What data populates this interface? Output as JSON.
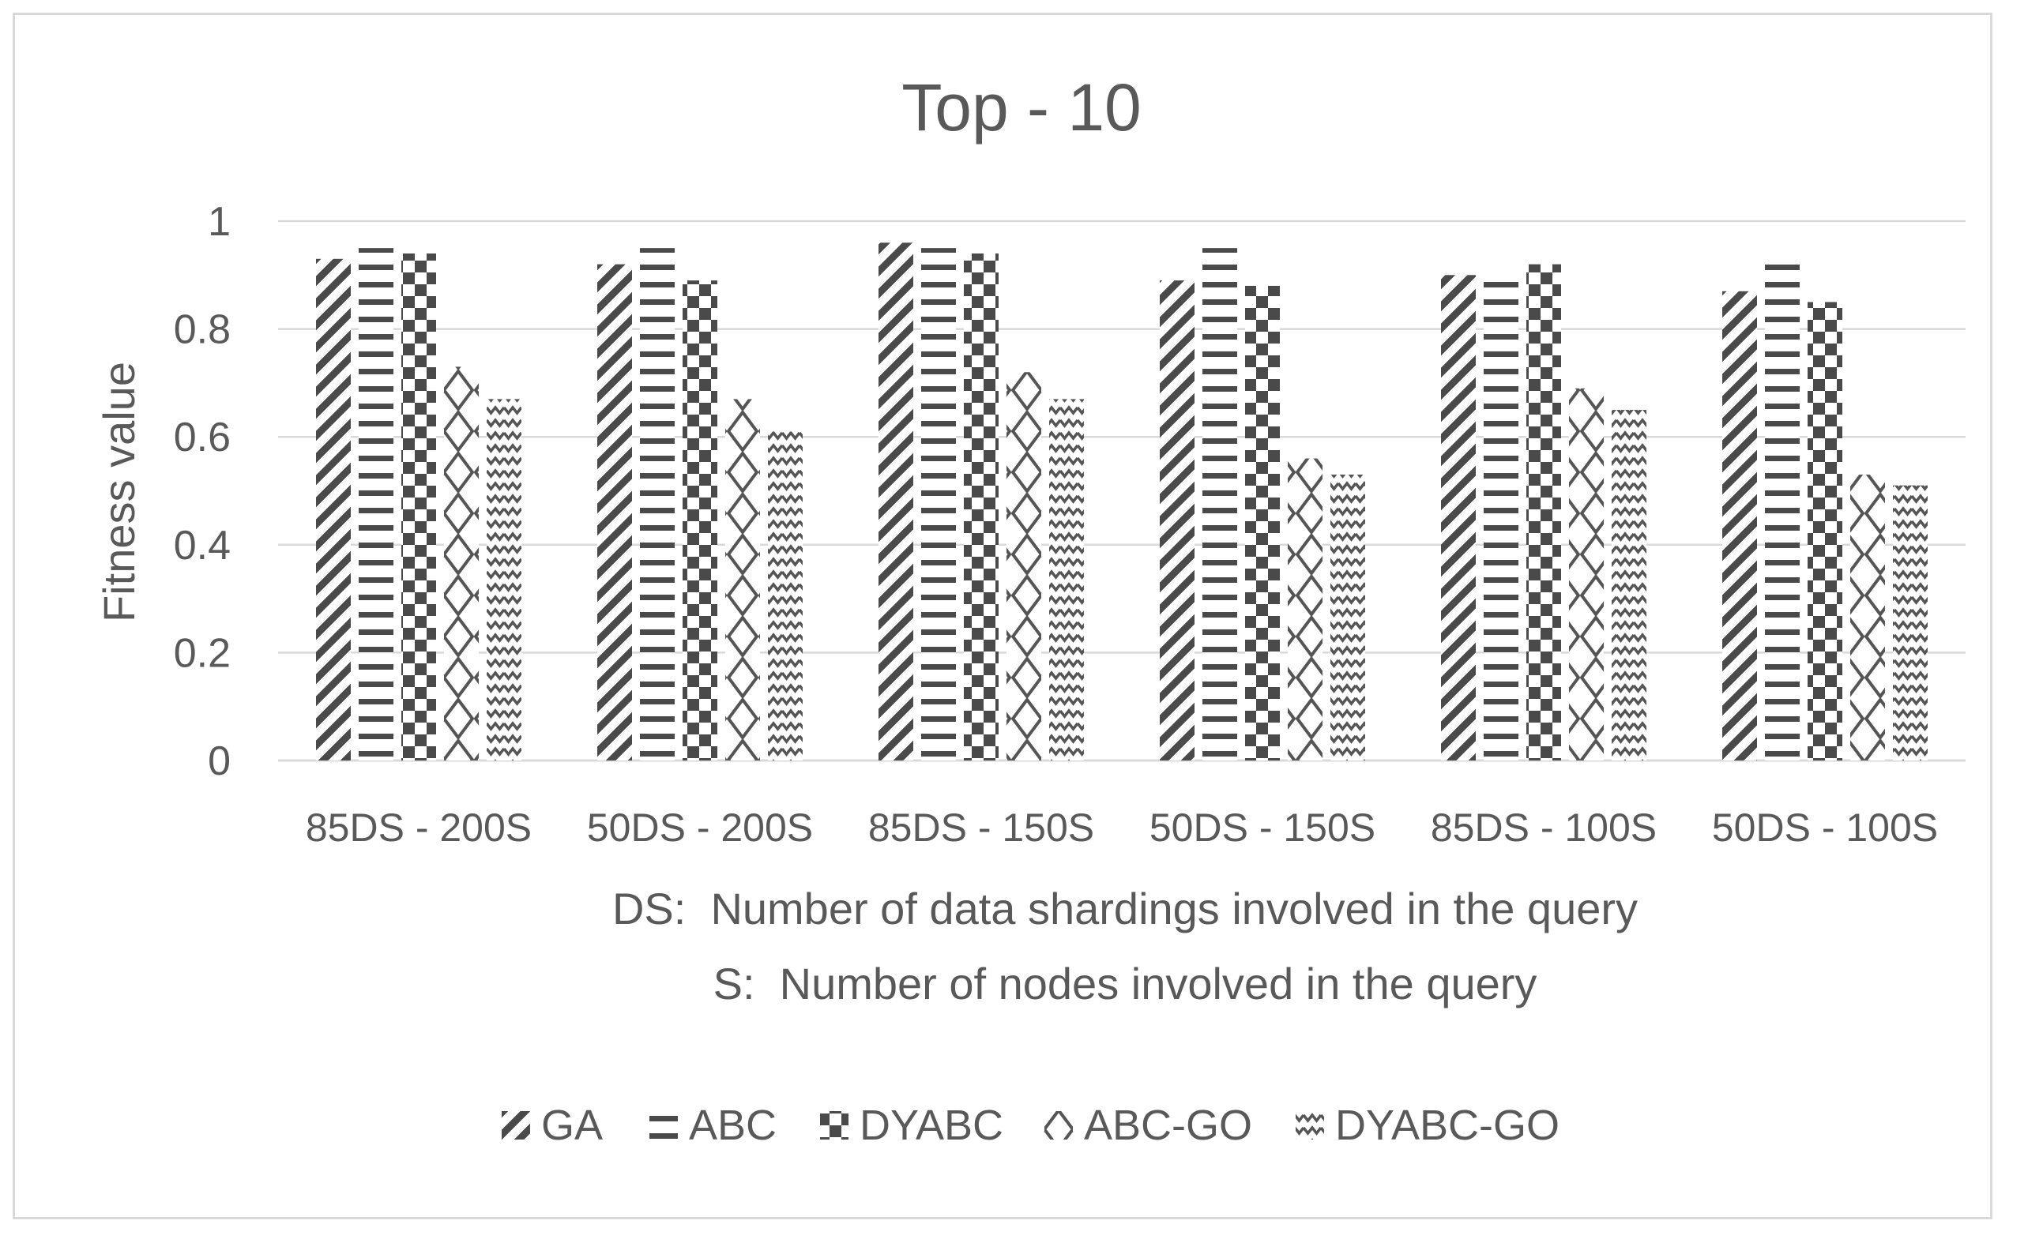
{
  "chart_data": {
    "type": "bar",
    "title": "Top - 10",
    "ylabel": "Fitness value",
    "xlabel_lines": [
      "DS:  Number of data shardings involved in the query",
      "S:  Number of nodes involved in the query"
    ],
    "ylim": [
      0,
      1
    ],
    "yticks": [
      "0",
      "0.2",
      "0.4",
      "0.6",
      "0.8",
      "1"
    ],
    "categories": [
      "85DS - 200S",
      "50DS - 200S",
      "85DS - 150S",
      "50DS - 150S",
      "85DS - 100S",
      "50DS - 100S"
    ],
    "series": [
      {
        "name": "GA",
        "pattern": "diagonal",
        "values": [
          0.93,
          0.92,
          0.96,
          0.89,
          0.9,
          0.87
        ]
      },
      {
        "name": "ABC",
        "pattern": "horizontal",
        "values": [
          0.95,
          0.95,
          0.95,
          0.95,
          0.89,
          0.92
        ]
      },
      {
        "name": "DYABC",
        "pattern": "checker",
        "values": [
          0.94,
          0.89,
          0.94,
          0.88,
          0.92,
          0.85
        ]
      },
      {
        "name": "ABC-GO",
        "pattern": "diamond",
        "values": [
          0.73,
          0.67,
          0.72,
          0.56,
          0.69,
          0.53
        ]
      },
      {
        "name": "DYABC-GO",
        "pattern": "wave",
        "values": [
          0.67,
          0.61,
          0.67,
          0.53,
          0.65,
          0.51
        ]
      }
    ],
    "grid": true,
    "legend_position": "bottom"
  }
}
